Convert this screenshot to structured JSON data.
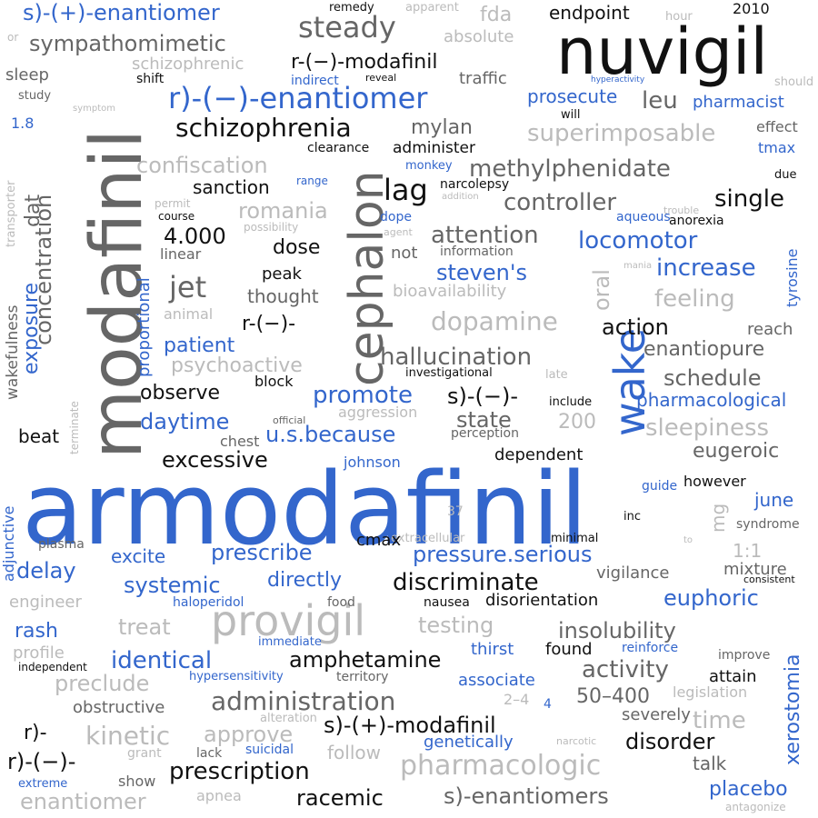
{
  "words": {
    "armodafinil": "armodafinil",
    "modafinil": "modafinil",
    "nuvigil": "nuvigil",
    "cephalon": "cephalon",
    "provigil": "provigil",
    "wake": "wake",
    "r_enantiomer": "r)-(−)-enantiomer",
    "s_plus_enantiomer": "s)-(+)-enantiomer",
    "r_modafinil": "r-(−)-modafinil",
    "s_plus_modafinil": "s)-(+)-modafinil",
    "schizophrenia": "schizophrenia",
    "methylphenidate": "methylphenidate",
    "steady": "steady",
    "sympathomimetic": "sympathomimetic",
    "schizophrenic": "schizophrenic",
    "administration": "administration",
    "prescription": "prescription",
    "pharmacologic": "pharmacologic",
    "dopamine": "dopamine",
    "hallucination": "hallucination",
    "discriminate": "discriminate",
    "amphetamine": "amphetamine",
    "insolubility": "insolubility",
    "activity": "activity",
    "racemic": "racemic",
    "s_enantiomers": "s)-enantiomers",
    "enantiomer": "enantiomer",
    "kinetic": "kinetic",
    "approve": "approve",
    "xerostomia": "xerostomia",
    "euphoric": "euphoric",
    "locomotor": "locomotor",
    "increase": "increase",
    "feeling": "feeling",
    "controller": "controller",
    "superimposable": "superimposable",
    "confiscation": "confiscation",
    "concentration": "concentration",
    "exposure": "exposure",
    "wakefulness": "wakefulness",
    "proportional": "proportional",
    "jet": "jet",
    "lag": "lag",
    "dose": "dose",
    "romania": "romania",
    "sanction": "sanction",
    "n4000": "4.000",
    "attention": "attention",
    "stevens": "steven's",
    "single": "single",
    "action": "action",
    "enantiopure": "enantiopure",
    "schedule": "schedule",
    "sleepiness": "sleepiness",
    "eugeroic": "eugeroic",
    "pharmacological": "pharmacological",
    "promote": "promote",
    "s_minus": "s)-(−)-",
    "state": "state",
    "n200": "200",
    "daytime": "daytime",
    "usbecause": "u.s.because",
    "excessive": "excessive",
    "observe": "observe",
    "patient": "patient",
    "psychoactive": "psychoactive",
    "r_minus": "r-(−)-",
    "peak": "peak",
    "thought": "thought",
    "bioavailability": "bioavailability",
    "oral": "oral",
    "tyrosine": "tyrosine",
    "reach": "reach",
    "june": "june",
    "mg": "mg",
    "syndrome": "syndrome",
    "ratio11": "1:1",
    "vigilance": "vigilance",
    "mixture": "mixture",
    "pressure_serious": "pressure.serious",
    "prescribe": "prescribe",
    "excite": "excite",
    "delay": "delay",
    "systemic": "systemic",
    "directly": "directly",
    "rash": "rash",
    "treat": "treat",
    "testing": "testing",
    "identical": "identical",
    "preclude": "preclude",
    "obstructive": "obstructive",
    "range50400": "50–400",
    "time": "time",
    "severely": "severely",
    "disorder": "disorder",
    "talk": "talk",
    "placebo": "placebo",
    "attain": "attain",
    "found": "found",
    "reinforce": "reinforce",
    "improve": "improve",
    "thirst": "thirst",
    "associate": "associate",
    "disorientation": "disorientation",
    "nausea": "nausea",
    "haloperidol": "haloperidol",
    "food": "food",
    "engineer": "engineer",
    "profile": "profile",
    "independent": "independent",
    "immediate": "immediate",
    "hypersensitivity": "hypersensitivity",
    "territory": "territory",
    "alteration": "alteration",
    "suicidal": "suicidal",
    "genetically": "genetically",
    "follow": "follow",
    "lack": "lack",
    "grant": "grant",
    "show": "show",
    "apnea": "apnea",
    "extreme": "extreme",
    "r_paren": "r)-",
    "r_paren_minus": "r)-(−)-",
    "cmax": "cmax",
    "plasma": "plasma",
    "extracellular": "extracellular",
    "n37": "37",
    "minimal": "minimal",
    "inc": "inc",
    "to": "to",
    "guide": "guide",
    "however": "however",
    "consistent": "consistent",
    "antagonize": "antagonize",
    "legislation": "legislation",
    "narcotic": "narcotic",
    "range24": "2–4",
    "n4": "4",
    "adjunctive": "adjunctive",
    "beat": "beat",
    "terminate": "terminate",
    "chest": "chest",
    "official": "official",
    "aggression": "aggression",
    "perception": "perception",
    "dependent": "dependent",
    "johnson": "johnson",
    "block": "block",
    "investigational": "investigational",
    "late": "late",
    "include": "include",
    "animal": "animal",
    "linear": "linear",
    "not": "not",
    "information": "information",
    "mania": "mania",
    "possibility": "possibility",
    "agent": "agent",
    "dope": "dope",
    "aqueous": "aqueous",
    "anorexia": "anorexia",
    "trouble": "trouble",
    "permit": "permit",
    "course": "course",
    "range": "range",
    "addition": "addition",
    "narcolepsy": "narcolepsy",
    "monkey": "monkey",
    "tmax": "tmax",
    "effect": "effect",
    "due": "due",
    "pharmacist": "pharmacist",
    "leu": "leu",
    "will": "will",
    "hyperactivity": "hyperactivity",
    "prosecute": "prosecute",
    "mylan": "mylan",
    "administer": "administer",
    "clearance": "clearance",
    "transporter": "transporter",
    "symptom": "symptom",
    "n18": "1.8",
    "sleep": "sleep",
    "study": "study",
    "or": "or",
    "shift": "shift",
    "indirect": "indirect",
    "reveal": "reveal",
    "traffic": "traffic",
    "fda": "fda",
    "absolute": "absolute",
    "remedy": "remedy",
    "apparent": "apparent",
    "endpoint": "endpoint",
    "hour": "hour",
    "n2010": "2010",
    "should": "should",
    "dat": "dat"
  }
}
